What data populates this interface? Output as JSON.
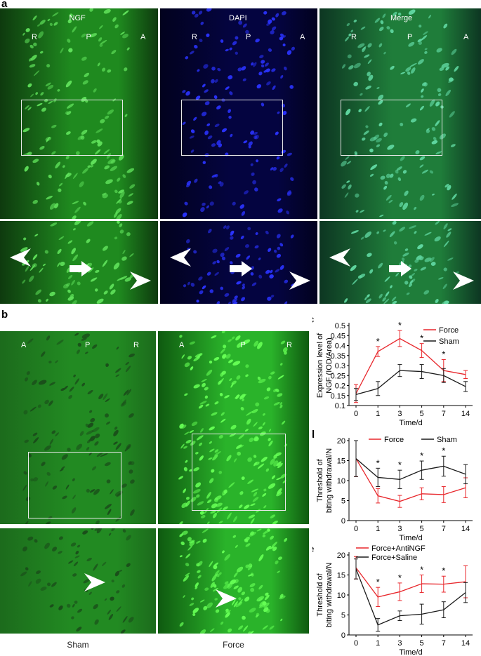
{
  "panel_a": {
    "letter": "a",
    "images": [
      {
        "title": "NGF",
        "labels": [
          "R",
          "P",
          "A"
        ],
        "palette": "green"
      },
      {
        "title": "DAPI",
        "labels": [
          "R",
          "P",
          "A"
        ],
        "palette": "blue"
      },
      {
        "title": "Merge",
        "labels": [
          "R",
          "P",
          "A"
        ],
        "palette": "merge"
      }
    ]
  },
  "panel_b": {
    "letter": "b",
    "images": [
      {
        "labels": [
          "A",
          "P",
          "R"
        ],
        "caption": "Sham"
      },
      {
        "labels": [
          "A",
          "P",
          "R"
        ],
        "caption": "Force"
      }
    ]
  },
  "colors": {
    "force": "#e8262b",
    "sham": "#1a1a1a",
    "green": "#2fbf2f",
    "blue": "#1f2bd8"
  },
  "chart_data": [
    {
      "panel": "c",
      "type": "line",
      "ylabel": [
        "Expression level of",
        "NGF (IOD/Area)"
      ],
      "xlabel": "Time/d",
      "categories": [
        "0",
        "1",
        "3",
        "5",
        "7",
        "14"
      ],
      "ylim": [
        0.1,
        0.5
      ],
      "yticks": [
        "0.1",
        "0.15",
        "0.2",
        "0.25",
        "0.3",
        "0.35",
        "0.4",
        "0.45",
        "0.5"
      ],
      "legend": "top-right",
      "series": [
        {
          "name": "Force",
          "color": "#e8262b",
          "values": [
            0.16,
            0.37,
            0.435,
            0.375,
            0.275,
            0.255
          ],
          "errors": [
            0.045,
            0.025,
            0.04,
            0.035,
            0.055,
            0.02
          ]
        },
        {
          "name": "Sham",
          "color": "#1a1a1a",
          "values": [
            0.155,
            0.185,
            0.275,
            0.27,
            0.25,
            0.195
          ],
          "errors": [
            0.03,
            0.035,
            0.03,
            0.035,
            0.035,
            0.025
          ]
        }
      ],
      "significance": [
        "",
        "*",
        "*",
        "*",
        "*",
        ""
      ]
    },
    {
      "panel": "d",
      "type": "line",
      "ylabel": [
        "Threshold of",
        "biting withdrawal/N"
      ],
      "xlabel": "Time/d",
      "categories": [
        "0",
        "1",
        "3",
        "5",
        "7",
        "14"
      ],
      "ylim": [
        0,
        20
      ],
      "yticks": [
        "0",
        "5",
        "10",
        "15",
        "20"
      ],
      "legend": "top",
      "series": [
        {
          "name": "Force",
          "color": "#e8262b",
          "values": [
            15.5,
            6.2,
            4.8,
            6.7,
            6.5,
            8.2
          ],
          "errors": [
            4.5,
            1.8,
            1.5,
            1.5,
            2.0,
            2.5
          ]
        },
        {
          "name": "Sham",
          "color": "#1a1a1a",
          "values": [
            15.5,
            10.8,
            10.3,
            12.6,
            13.6,
            11.6
          ],
          "errors": [
            4.5,
            2.3,
            2.3,
            2.3,
            2.5,
            2.4
          ]
        }
      ],
      "significance": [
        "",
        "*",
        "*",
        "*",
        "*",
        ""
      ]
    },
    {
      "panel": "e",
      "type": "line",
      "ylabel": [
        "Threshold of",
        "biting withdrawal/N"
      ],
      "xlabel": "Time/d",
      "categories": [
        "0",
        "1",
        "3",
        "5",
        "7",
        "14"
      ],
      "ylim": [
        0,
        20
      ],
      "yticks": [
        "0",
        "5",
        "10",
        "15",
        "20"
      ],
      "legend": "top",
      "series": [
        {
          "name": "Force+AntiNGF",
          "color": "#e8262b",
          "values": [
            16.8,
            9.5,
            10.8,
            12.8,
            12.7,
            13.3
          ],
          "errors": [
            2.8,
            2.4,
            2.2,
            2.2,
            2.0,
            4.0
          ]
        },
        {
          "name": "Force+Saline",
          "color": "#1a1a1a",
          "values": [
            16.5,
            2.5,
            4.8,
            5.2,
            6.3,
            10.6
          ],
          "errors": [
            2.5,
            1.6,
            1.2,
            2.5,
            2.0,
            2.5
          ]
        }
      ],
      "significance": [
        "",
        "*",
        "*",
        "*",
        "*",
        ""
      ]
    }
  ]
}
